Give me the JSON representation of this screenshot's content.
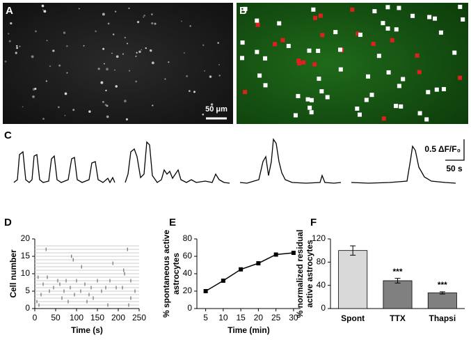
{
  "figure": {
    "panel_labels": [
      "A",
      "B",
      "C",
      "D",
      "E",
      "F"
    ],
    "scale_bar_a": "50 μm",
    "scale_c_y": "0.5 ΔF/F₀",
    "scale_c_x": "50 s"
  },
  "chart_data": [
    {
      "type": "raster",
      "xlabel": "Time (s)",
      "ylabel": "Cell number",
      "xlim": [
        0,
        250
      ],
      "xticks": [
        0,
        50,
        100,
        150,
        200,
        250
      ],
      "ylim": [
        0,
        20
      ],
      "yticks": [
        0,
        5,
        10,
        15,
        20
      ],
      "color": "#555555",
      "series": [
        {
          "x": [
            27,
            222,
            88,
            92,
            187,
            112,
            213,
            215,
            8,
            30,
            55,
            75,
            100,
            150,
            180,
            230,
            20,
            60,
            120,
            170,
            210,
            45,
            85,
            135,
            195,
            35,
            70,
            110,
            160,
            240,
            15,
            95,
            130,
            65,
            140,
            230,
            5,
            80,
            125,
            175,
            225,
            10
          ],
          "values": [
            17,
            17,
            15,
            14,
            13,
            12,
            11,
            10,
            9,
            9,
            8,
            8,
            8,
            8,
            8,
            8,
            7,
            7,
            7,
            6,
            6,
            6,
            6,
            6,
            6,
            5,
            5,
            5,
            5,
            5,
            4,
            4,
            4,
            3,
            3,
            3,
            2,
            2,
            2,
            1,
            1,
            1
          ]
        }
      ]
    },
    {
      "type": "line",
      "xlabel": "Time (min)",
      "ylabel": [
        "% spontaneous active",
        "astrocytes"
      ],
      "x": [
        5,
        10,
        15,
        20,
        25,
        30
      ],
      "values": [
        20,
        32,
        45,
        52,
        62,
        64
      ],
      "color": "#000000",
      "xlim": [
        2.5,
        32
      ],
      "xticks": [
        5,
        10,
        15,
        20,
        25,
        30
      ],
      "ylim": [
        0,
        80
      ],
      "yticks": [
        0,
        20,
        40,
        60,
        80
      ]
    },
    {
      "type": "bar",
      "ylabel": [
        "% normalized residual",
        "active astrocytes"
      ],
      "categories": [
        "Spont",
        "TTX",
        "Thapsi"
      ],
      "values": [
        100,
        48,
        27
      ],
      "errors": [
        8,
        4,
        2
      ],
      "colors": [
        "#d9d9d9",
        "#808080",
        "#808080"
      ],
      "annotations": {
        "TTX": "***",
        "Thapsi": "***"
      },
      "ylim": [
        0,
        120
      ],
      "yticks": [
        0,
        40,
        80,
        120
      ]
    }
  ]
}
